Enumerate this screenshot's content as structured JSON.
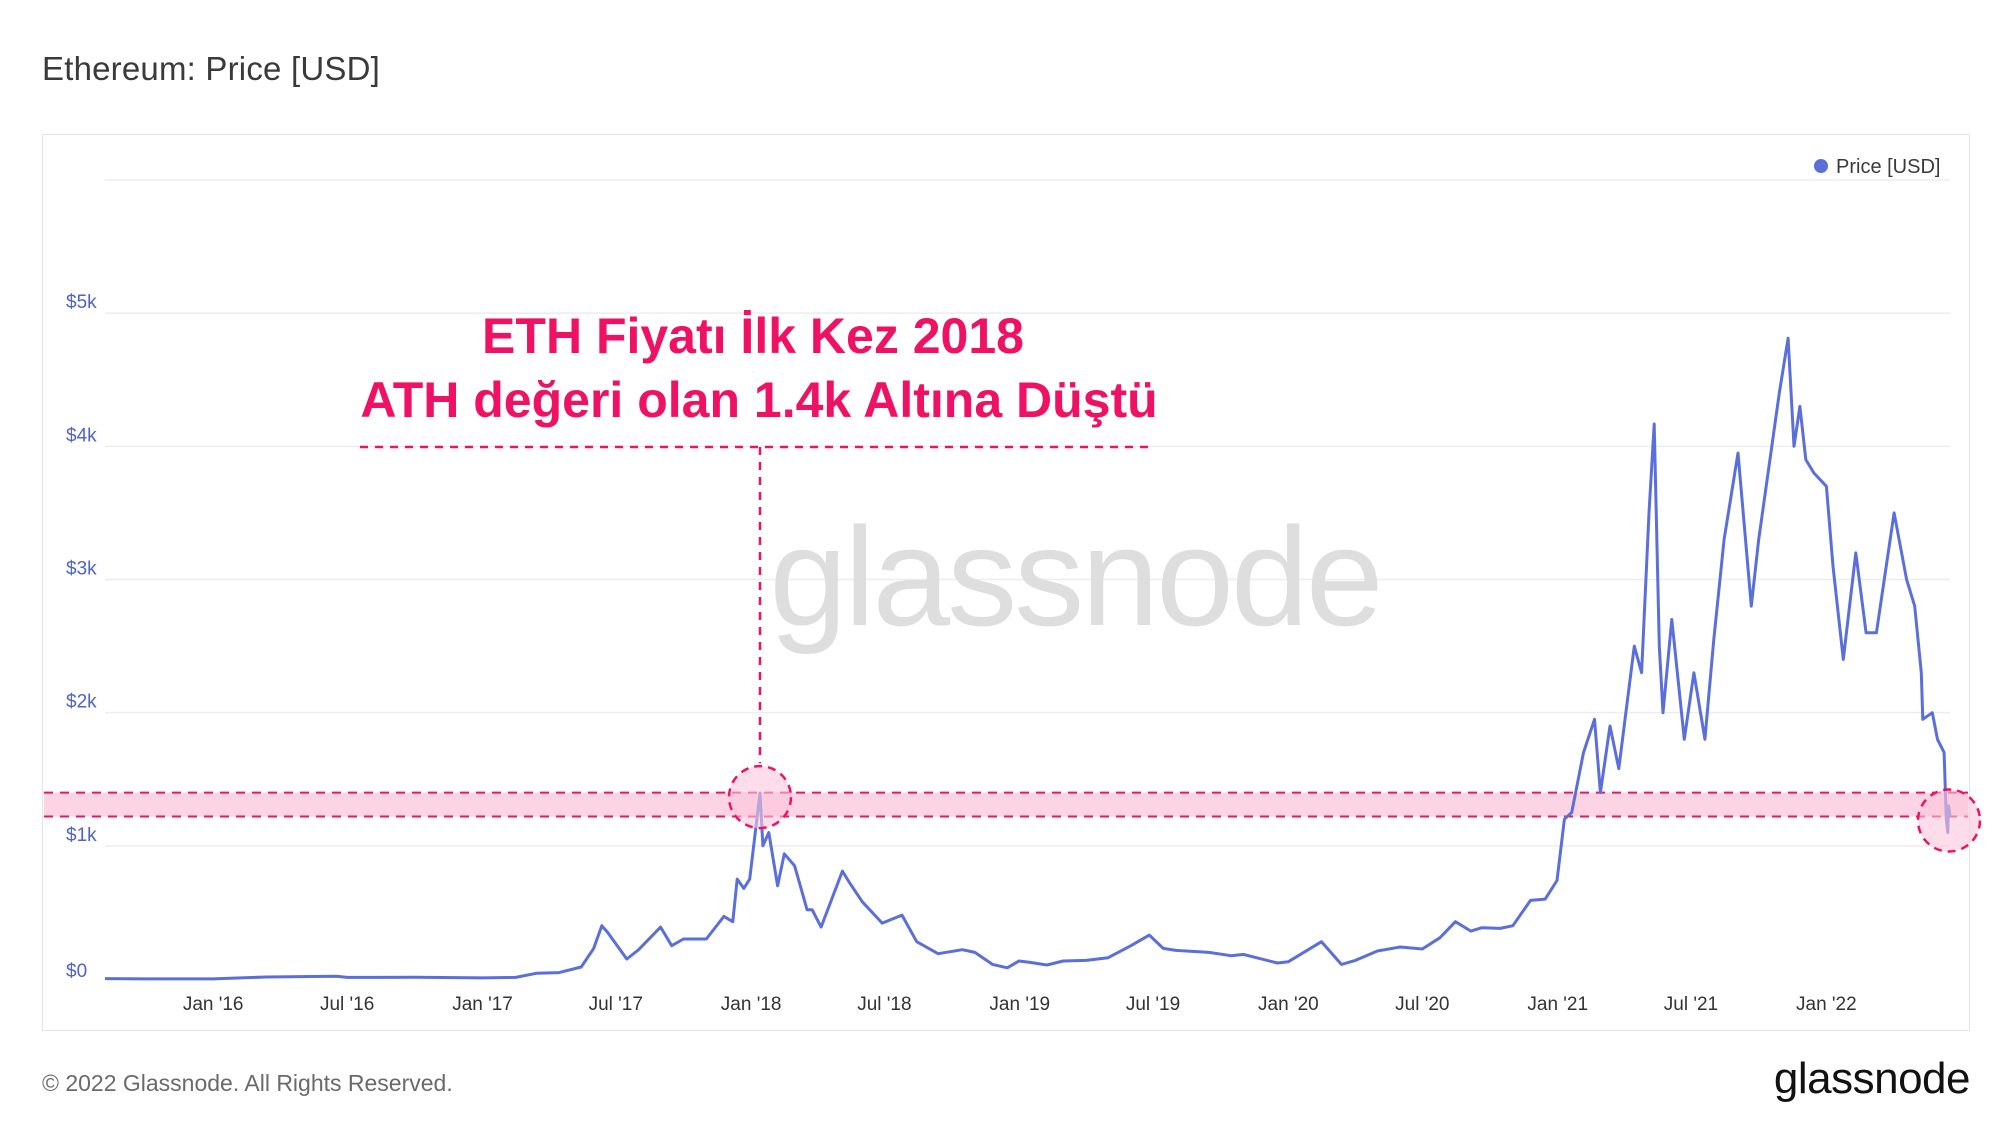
{
  "header": {
    "title": "Ethereum: Price [USD]"
  },
  "watermark": "glassnode",
  "footer": {
    "copyright": "© 2022 Glassnode. All Rights Reserved.",
    "logo": "glassnode"
  },
  "annotation": {
    "line1": "ETH Fiyatı İlk Kez 2018",
    "line2": "ATH değeri olan 1.4k Altına Düştü",
    "band_low": 1220,
    "band_high": 1400,
    "highlight_points": [
      {
        "date": "2018-01-13",
        "value": 1396
      },
      {
        "date": "2022-06-18",
        "value": 1220
      }
    ]
  },
  "colors": {
    "series": "#5b6fdb",
    "annotation": "#ee1164",
    "band": "#fbc6da",
    "axis_text": "#4f63c8",
    "grid": "#ededed"
  },
  "chart_data": {
    "type": "line",
    "title": "Ethereum: Price [USD]",
    "xlabel": "",
    "ylabel": "",
    "ylim": [
      0,
      6000
    ],
    "y_ticks": [
      {
        "value": 0,
        "label": "$0"
      },
      {
        "value": 1000,
        "label": "$1k"
      },
      {
        "value": 2000,
        "label": "$2k"
      },
      {
        "value": 3000,
        "label": "$3k"
      },
      {
        "value": 4000,
        "label": "$4k"
      },
      {
        "value": 5000,
        "label": "$5k"
      }
    ],
    "x_range": [
      "2015-08-07",
      "2022-06-18"
    ],
    "x_ticks": [
      {
        "date": "2016-01-01",
        "label": "Jan '16"
      },
      {
        "date": "2016-07-01",
        "label": "Jul '16"
      },
      {
        "date": "2017-01-01",
        "label": "Jan '17"
      },
      {
        "date": "2017-07-01",
        "label": "Jul '17"
      },
      {
        "date": "2018-01-01",
        "label": "Jan '18"
      },
      {
        "date": "2018-07-01",
        "label": "Jul '18"
      },
      {
        "date": "2019-01-01",
        "label": "Jan '19"
      },
      {
        "date": "2019-07-01",
        "label": "Jul '19"
      },
      {
        "date": "2020-01-01",
        "label": "Jan '20"
      },
      {
        "date": "2020-07-01",
        "label": "Jul '20"
      },
      {
        "date": "2021-01-01",
        "label": "Jan '21"
      },
      {
        "date": "2021-07-01",
        "label": "Jul '21"
      },
      {
        "date": "2022-01-01",
        "label": "Jan '22"
      }
    ],
    "legend": {
      "position": "top-right",
      "entries": [
        "Price [USD]"
      ]
    },
    "grid": true,
    "series": [
      {
        "name": "Price [USD]",
        "points": [
          [
            "2015-08-07",
            2.8
          ],
          [
            "2015-10-01",
            0.7
          ],
          [
            "2016-01-01",
            1
          ],
          [
            "2016-03-13",
            15
          ],
          [
            "2016-06-17",
            21
          ],
          [
            "2016-07-01",
            12
          ],
          [
            "2016-10-01",
            13
          ],
          [
            "2017-01-01",
            8
          ],
          [
            "2017-02-15",
            12
          ],
          [
            "2017-03-15",
            43
          ],
          [
            "2017-04-15",
            48
          ],
          [
            "2017-05-15",
            90
          ],
          [
            "2017-06-01",
            230
          ],
          [
            "2017-06-12",
            400
          ],
          [
            "2017-06-20",
            350
          ],
          [
            "2017-07-16",
            150
          ],
          [
            "2017-08-01",
            220
          ],
          [
            "2017-08-31",
            390
          ],
          [
            "2017-09-15",
            250
          ],
          [
            "2017-10-01",
            300
          ],
          [
            "2017-11-01",
            300
          ],
          [
            "2017-11-25",
            470
          ],
          [
            "2017-12-07",
            430
          ],
          [
            "2017-12-13",
            750
          ],
          [
            "2017-12-22",
            680
          ],
          [
            "2017-12-30",
            750
          ],
          [
            "2018-01-13",
            1396
          ],
          [
            "2018-01-17",
            1000
          ],
          [
            "2018-01-25",
            1100
          ],
          [
            "2018-02-06",
            700
          ],
          [
            "2018-02-15",
            940
          ],
          [
            "2018-03-01",
            850
          ],
          [
            "2018-03-18",
            520
          ],
          [
            "2018-03-25",
            520
          ],
          [
            "2018-04-06",
            390
          ],
          [
            "2018-05-05",
            810
          ],
          [
            "2018-05-15",
            720
          ],
          [
            "2018-06-01",
            580
          ],
          [
            "2018-06-28",
            420
          ],
          [
            "2018-07-25",
            480
          ],
          [
            "2018-08-14",
            280
          ],
          [
            "2018-09-12",
            190
          ],
          [
            "2018-10-15",
            220
          ],
          [
            "2018-11-01",
            200
          ],
          [
            "2018-11-25",
            110
          ],
          [
            "2018-12-15",
            84
          ],
          [
            "2018-12-31",
            135
          ],
          [
            "2019-01-15",
            125
          ],
          [
            "2019-02-07",
            105
          ],
          [
            "2019-03-01",
            135
          ],
          [
            "2019-04-01",
            140
          ],
          [
            "2019-05-01",
            160
          ],
          [
            "2019-06-01",
            250
          ],
          [
            "2019-06-26",
            330
          ],
          [
            "2019-07-15",
            230
          ],
          [
            "2019-08-01",
            215
          ],
          [
            "2019-09-15",
            200
          ],
          [
            "2019-10-15",
            175
          ],
          [
            "2019-11-01",
            185
          ],
          [
            "2019-12-17",
            120
          ],
          [
            "2020-01-01",
            130
          ],
          [
            "2020-02-15",
            280
          ],
          [
            "2020-03-13",
            110
          ],
          [
            "2020-04-01",
            140
          ],
          [
            "2020-05-01",
            210
          ],
          [
            "2020-06-01",
            240
          ],
          [
            "2020-07-01",
            225
          ],
          [
            "2020-07-25",
            310
          ],
          [
            "2020-08-15",
            430
          ],
          [
            "2020-09-05",
            360
          ],
          [
            "2020-09-20",
            385
          ],
          [
            "2020-10-15",
            380
          ],
          [
            "2020-11-01",
            400
          ],
          [
            "2020-11-25",
            590
          ],
          [
            "2020-12-15",
            600
          ],
          [
            "2020-12-31",
            740
          ],
          [
            "2021-01-10",
            1200
          ],
          [
            "2021-01-20",
            1250
          ],
          [
            "2021-02-05",
            1700
          ],
          [
            "2021-02-20",
            1950
          ],
          [
            "2021-02-28",
            1400
          ],
          [
            "2021-03-13",
            1900
          ],
          [
            "2021-03-25",
            1580
          ],
          [
            "2021-04-15",
            2500
          ],
          [
            "2021-04-25",
            2300
          ],
          [
            "2021-05-05",
            3500
          ],
          [
            "2021-05-12",
            4168
          ],
          [
            "2021-05-19",
            2500
          ],
          [
            "2021-05-24",
            2000
          ],
          [
            "2021-06-05",
            2700
          ],
          [
            "2021-06-22",
            1800
          ],
          [
            "2021-07-05",
            2300
          ],
          [
            "2021-07-20",
            1800
          ],
          [
            "2021-08-01",
            2550
          ],
          [
            "2021-08-15",
            3300
          ],
          [
            "2021-09-03",
            3950
          ],
          [
            "2021-09-21",
            2800
          ],
          [
            "2021-10-01",
            3300
          ],
          [
            "2021-10-15",
            3850
          ],
          [
            "2021-10-29",
            4400
          ],
          [
            "2021-11-10",
            4812
          ],
          [
            "2021-11-18",
            4000
          ],
          [
            "2021-11-26",
            4300
          ],
          [
            "2021-12-04",
            3900
          ],
          [
            "2021-12-15",
            3800
          ],
          [
            "2022-01-01",
            3700
          ],
          [
            "2022-01-10",
            3100
          ],
          [
            "2022-01-24",
            2400
          ],
          [
            "2022-02-10",
            3200
          ],
          [
            "2022-02-24",
            2600
          ],
          [
            "2022-03-10",
            2600
          ],
          [
            "2022-04-03",
            3500
          ],
          [
            "2022-04-20",
            3000
          ],
          [
            "2022-05-01",
            2800
          ],
          [
            "2022-05-10",
            2300
          ],
          [
            "2022-05-12",
            1950
          ],
          [
            "2022-05-25",
            2000
          ],
          [
            "2022-06-01",
            1800
          ],
          [
            "2022-06-10",
            1700
          ],
          [
            "2022-06-13",
            1200
          ],
          [
            "2022-06-15",
            1100
          ],
          [
            "2022-06-16",
            1300
          ],
          [
            "2022-06-18",
            1220
          ]
        ]
      }
    ]
  }
}
